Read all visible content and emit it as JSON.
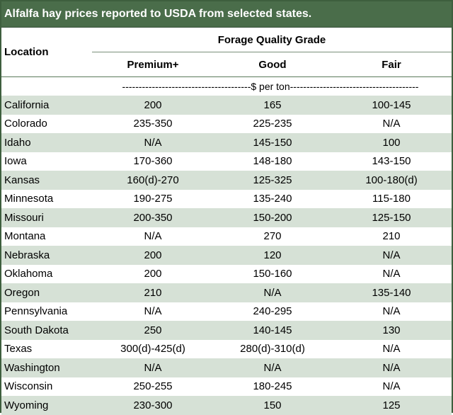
{
  "title": "Alfalfa hay prices reported to USDA from selected states.",
  "header": {
    "group_label": "Forage Quality Grade",
    "location_label": "Location",
    "columns": [
      "Premium+",
      "Good",
      "Fair"
    ],
    "units": "---------------------------------------$ per ton---------------------------------------"
  },
  "rows": [
    {
      "location": "California",
      "premium": "200",
      "good": "165",
      "fair": "100-145"
    },
    {
      "location": "Colorado",
      "premium": "235-350",
      "good": "225-235",
      "fair": "N/A"
    },
    {
      "location": "Idaho",
      "premium": "N/A",
      "good": "145-150",
      "fair": "100"
    },
    {
      "location": "Iowa",
      "premium": "170-360",
      "good": "148-180",
      "fair": "143-150"
    },
    {
      "location": "Kansas",
      "premium": "160(d)-270",
      "good": "125-325",
      "fair": "100-180(d)"
    },
    {
      "location": "Minnesota",
      "premium": "190-275",
      "good": "135-240",
      "fair": "115-180"
    },
    {
      "location": "Missouri",
      "premium": "200-350",
      "good": "150-200",
      "fair": "125-150"
    },
    {
      "location": "Montana",
      "premium": "N/A",
      "good": "270",
      "fair": "210"
    },
    {
      "location": "Nebraska",
      "premium": "200",
      "good": "120",
      "fair": "N/A"
    },
    {
      "location": "Oklahoma",
      "premium": "200",
      "good": "150-160",
      "fair": "N/A"
    },
    {
      "location": "Oregon",
      "premium": "210",
      "good": "N/A",
      "fair": "135-140"
    },
    {
      "location": "Pennsylvania",
      "premium": "N/A",
      "good": "240-295",
      "fair": "N/A"
    },
    {
      "location": "South Dakota",
      "premium": "250",
      "good": "140-145",
      "fair": "130"
    },
    {
      "location": "Texas",
      "premium": "300(d)-425(d)",
      "good": "280(d)-310(d)",
      "fair": "N/A"
    },
    {
      "location": "Washington",
      "premium": "N/A",
      "good": "N/A",
      "fair": "N/A"
    },
    {
      "location": "Wisconsin",
      "premium": "250-255",
      "good": "180-245",
      "fair": "N/A"
    },
    {
      "location": "Wyoming",
      "premium": "230-300",
      "good": "150",
      "fair": "125"
    }
  ]
}
